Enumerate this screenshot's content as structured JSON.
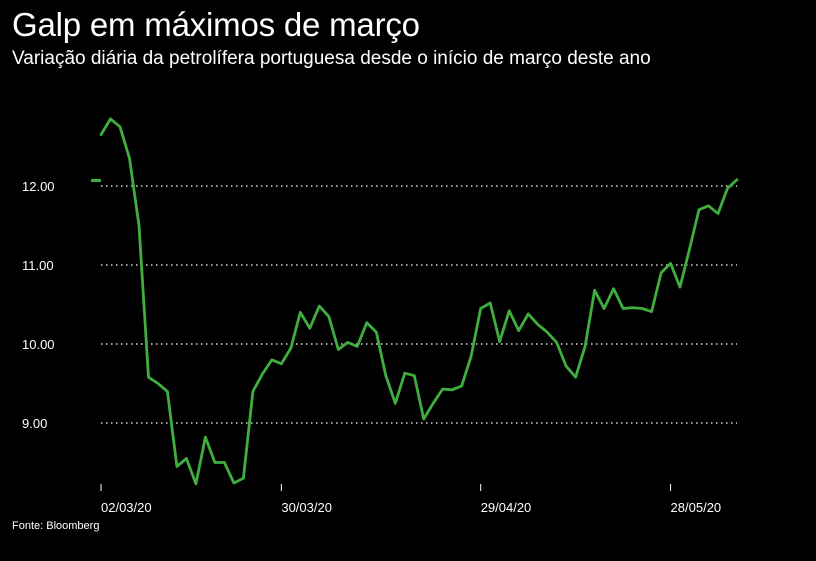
{
  "title": "Galp em máximos de março",
  "subtitle": "Variação diária da petrolífera portuguesa desde o início de março deste ano",
  "source": "Fonte: Bloomberg",
  "colors": {
    "background": "#000000",
    "line": "#3fae3f",
    "text": "#ffffff",
    "grid": "#ffffff"
  },
  "chart_data": {
    "type": "line",
    "title": "",
    "xlabel": "",
    "ylabel": "",
    "ylim": [
      8.2,
      12.9
    ],
    "grid": "dotted horizontal",
    "y_ticks": [
      12.0,
      11.0,
      10.0,
      9.0
    ],
    "y_tick_labels": [
      "12.00",
      "11.00",
      "10.00",
      "9.00"
    ],
    "x_ticks": [
      0,
      19,
      40,
      60
    ],
    "x_tick_labels": [
      "02/03/20",
      "30/03/20",
      "29/04/20",
      "28/05/20"
    ],
    "reference_value": 12.07,
    "series": [
      {
        "values": [
          12.65,
          12.85,
          12.75,
          12.35,
          11.5,
          9.58,
          9.5,
          9.4,
          8.45,
          8.55,
          8.23,
          8.82,
          8.5,
          8.5,
          8.24,
          8.3,
          9.4,
          9.62,
          9.8,
          9.75,
          9.95,
          10.4,
          10.2,
          10.48,
          10.35,
          9.93,
          10.02,
          9.97,
          10.27,
          10.15,
          9.6,
          9.25,
          9.63,
          9.6,
          9.05,
          9.25,
          9.43,
          9.42,
          9.47,
          9.85,
          10.45,
          10.52,
          10.03,
          10.42,
          10.17,
          10.38,
          10.25,
          10.15,
          10.02,
          9.72,
          9.58,
          9.97,
          10.68,
          10.45,
          10.7,
          10.45,
          10.46,
          10.45,
          10.41,
          10.9,
          11.02,
          10.72,
          11.2,
          11.7,
          11.75,
          11.65,
          11.97,
          12.08
        ]
      }
    ]
  }
}
